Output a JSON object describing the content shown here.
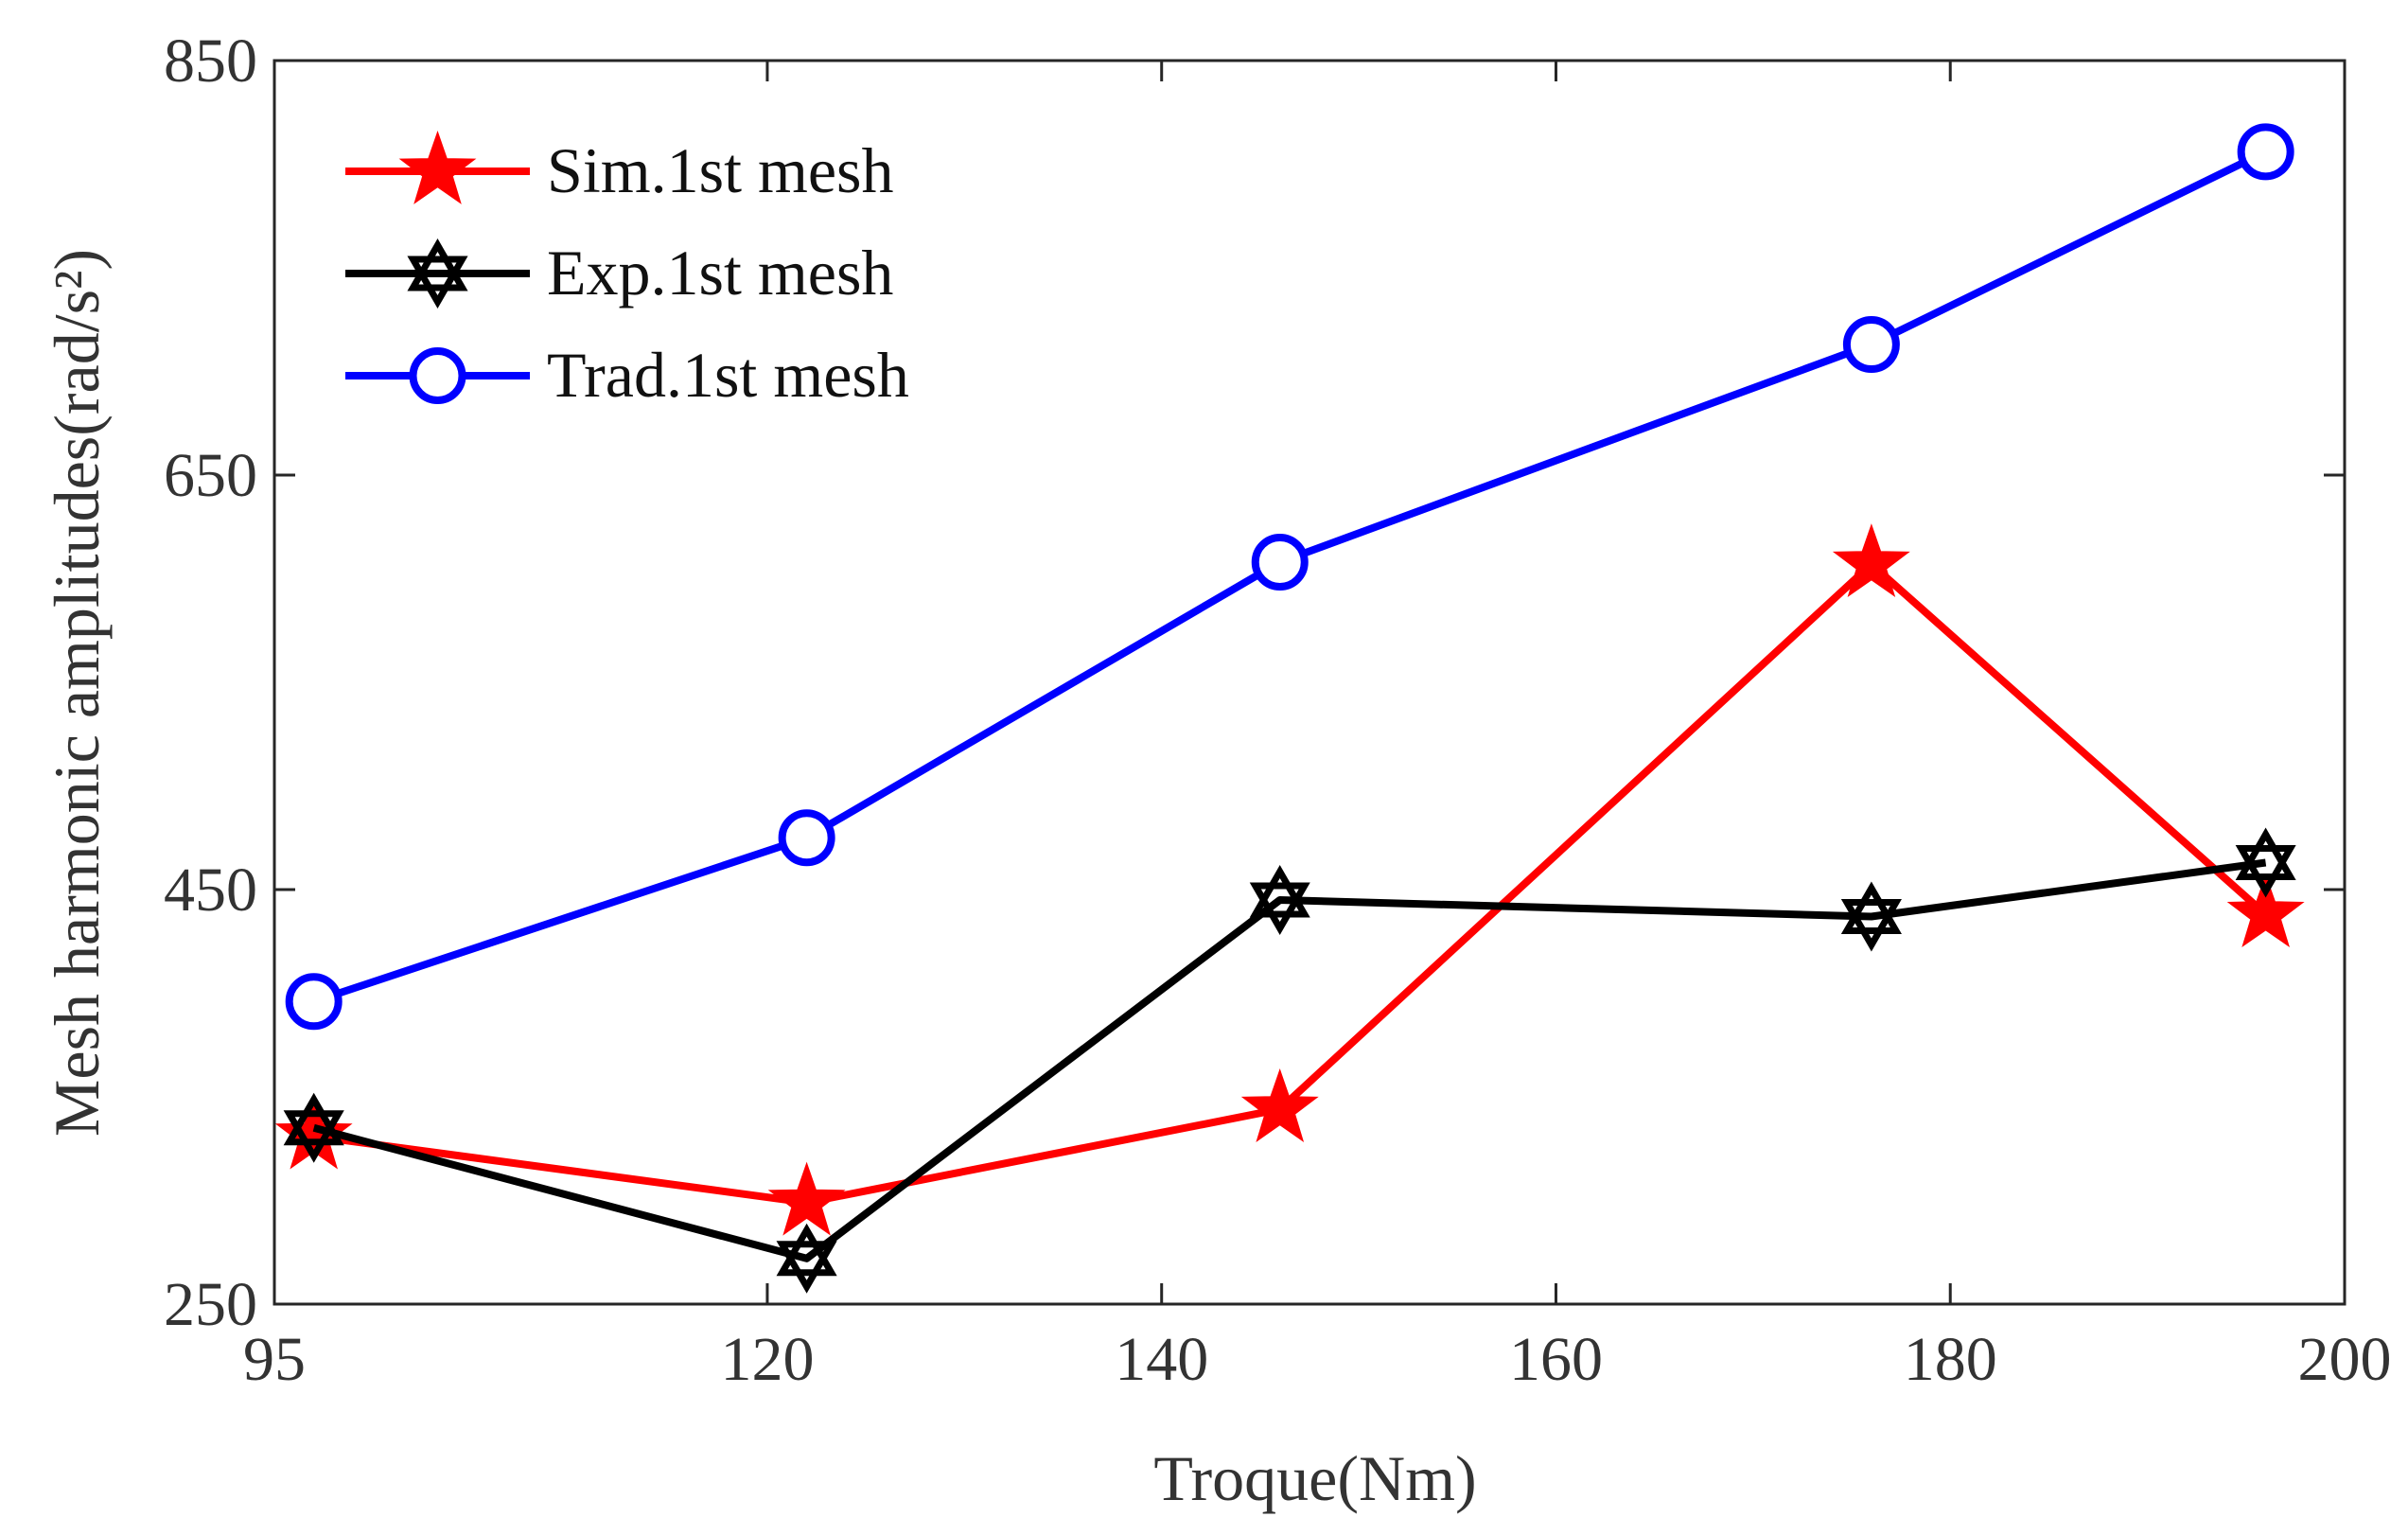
{
  "chart_data": {
    "type": "line",
    "title": "",
    "xlabel": "Troque(Nm)",
    "ylabel": "Mesh harmonic amplitudes(rad/s²)",
    "x_tick_labels": [
      "95",
      "120",
      "140",
      "160",
      "180",
      "200"
    ],
    "y_tick_labels": [
      "250",
      "450",
      "650",
      "850"
    ],
    "x_ticks": [
      95,
      120,
      140,
      160,
      180,
      200
    ],
    "y_ticks": [
      250,
      450,
      650,
      850
    ],
    "xlim": [
      95,
      200
    ],
    "ylim": [
      250,
      850
    ],
    "grid": false,
    "legend_position": "top-left",
    "x": [
      97,
      122,
      146,
      176,
      196
    ],
    "series": [
      {
        "name": "Sim.1st mesh",
        "color": "#ff0000",
        "marker": "star",
        "values": [
          331,
          299,
          344,
          607,
          438
        ]
      },
      {
        "name": "Exp.1st mesh",
        "color": "#000000",
        "marker": "hexagram",
        "values": [
          335,
          272,
          445,
          437,
          463
        ]
      },
      {
        "name": "Trad.1st mesh",
        "color": "#0000ff",
        "marker": "circle",
        "values": [
          396,
          475,
          608,
          713,
          806
        ]
      }
    ]
  }
}
